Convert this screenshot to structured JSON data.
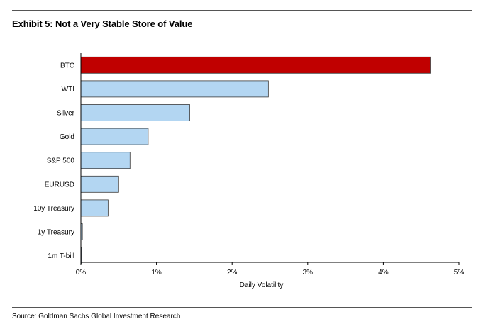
{
  "header": {
    "title": "Exhibit 5: Not a Very Stable Store of Value"
  },
  "footer": {
    "source": "Source: Goldman Sachs Global Investment Research"
  },
  "colors": {
    "highlight": "#c00000",
    "bar": "#b3d6f2",
    "bar_stroke": "#3a3a3a"
  },
  "chart_data": {
    "type": "bar",
    "orientation": "horizontal",
    "title": "Exhibit 5: Not a Very Stable Store of Value",
    "xlabel": "Daily Volatility",
    "ylabel": "",
    "categories": [
      "BTC",
      "WTI",
      "Silver",
      "Gold",
      "S&P 500",
      "EURUSD",
      "10y Treasury",
      "1y Treasury",
      "1m T-bill"
    ],
    "values": [
      4.62,
      2.48,
      1.44,
      0.89,
      0.65,
      0.5,
      0.36,
      0.02,
      0.005
    ],
    "highlight": [
      "BTC"
    ],
    "xlim": [
      0,
      5
    ],
    "xticks": [
      0,
      1,
      2,
      3,
      4,
      5
    ],
    "xtick_labels": [
      "0%",
      "1%",
      "2%",
      "3%",
      "4%",
      "5%"
    ],
    "unit": "%",
    "grid": false,
    "legend": "none"
  }
}
